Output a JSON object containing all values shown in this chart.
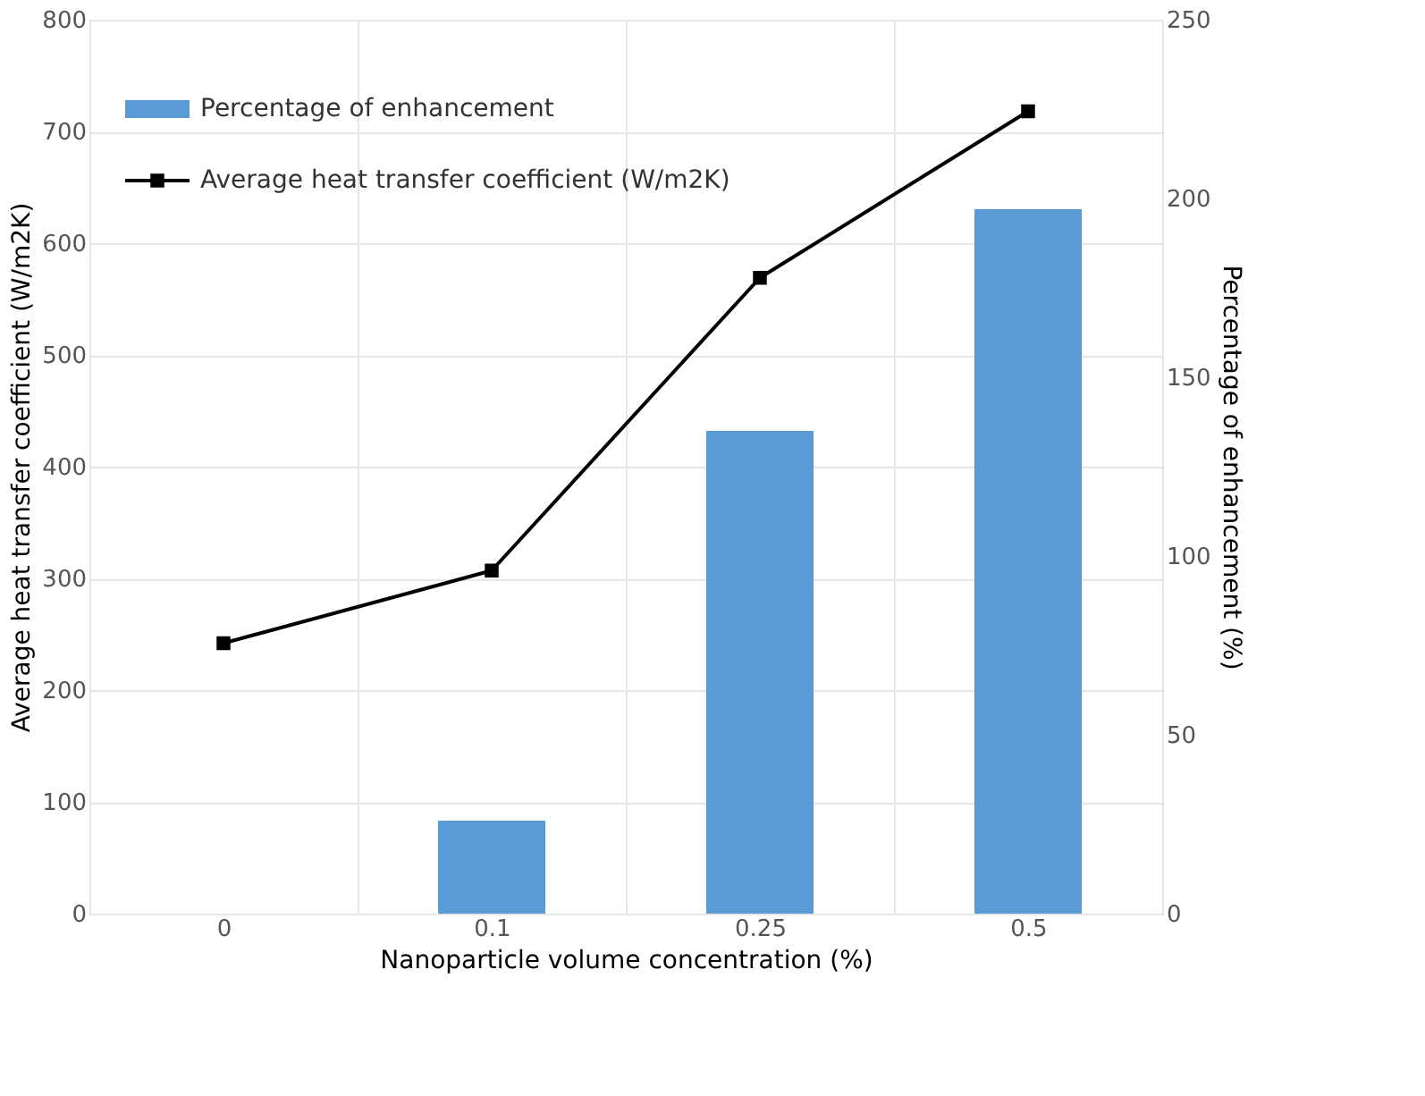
{
  "chart_data": {
    "type": "bar",
    "categories": [
      "0",
      "0.1",
      "0.25",
      "0.5"
    ],
    "xlabel": "Nanoparticle volume concentration (%)",
    "ylabel": "Average heat transfer coefficient (W/m2K)",
    "y2label": "Percentage of enhancement (%)",
    "series": [
      {
        "name": "Percentage of enhancement",
        "axis": "y2",
        "color": "#5b9bd5",
        "values": [
          0,
          26,
          135,
          197
        ]
      },
      {
        "name": "Average heat transfer coefficient (W/m2K)",
        "type": "line",
        "axis": "y",
        "color": "#000000",
        "marker": "square",
        "values": [
          242,
          307,
          569,
          718
        ]
      }
    ],
    "ylim": [
      0,
      800
    ],
    "yticks": [
      0,
      100,
      200,
      300,
      400,
      500,
      600,
      700,
      800
    ],
    "y2lim": [
      0,
      250
    ],
    "y2ticks": [
      0,
      50,
      100,
      150,
      200,
      250
    ],
    "grid": true,
    "legend": "top left"
  }
}
